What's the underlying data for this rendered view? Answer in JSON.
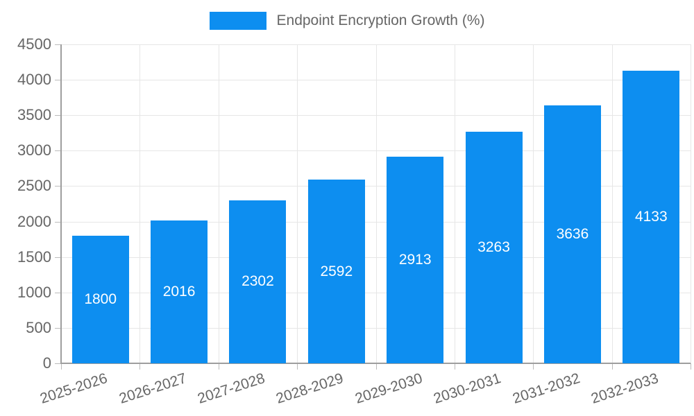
{
  "chart_data": {
    "type": "bar",
    "title": "Endpoint Encryption Growth (%)",
    "legend": {
      "label": "Endpoint Encryption Growth (%)",
      "position": "top"
    },
    "categories": [
      "2025-2026",
      "2026-2027",
      "2027-2028",
      "2028-2029",
      "2029-2030",
      "2030-2031",
      "2031-2032",
      "2032-2033"
    ],
    "values": [
      1800,
      2016,
      2302,
      2592,
      2913,
      3263,
      3636,
      4133
    ],
    "xlabel": "",
    "ylabel": "",
    "ylim": [
      0,
      4500
    ],
    "yticks": [
      0,
      500,
      1000,
      1500,
      2000,
      2500,
      3000,
      3500,
      4000,
      4500
    ],
    "grid": true,
    "x_label_rotation_deg": -18,
    "colors": {
      "bar": "#0d8ef0",
      "bar_value_text": "#ffffff",
      "grid": "#e6e6e6",
      "axis": "#9e9e9e",
      "tick": "#bbbbbb",
      "text": "#666666"
    }
  }
}
